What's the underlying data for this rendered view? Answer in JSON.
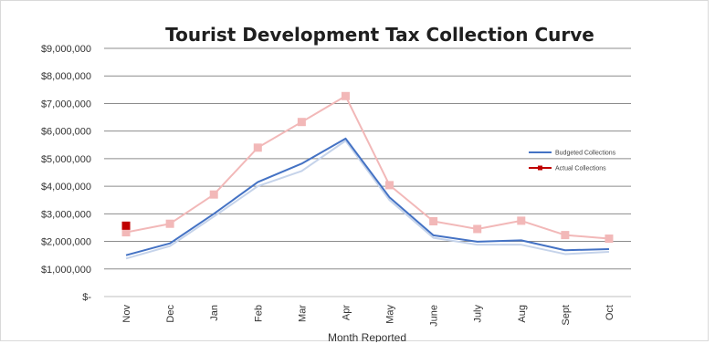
{
  "chart_data": {
    "type": "line",
    "title": "Tourist  Development Tax Collection Curve",
    "xlabel": "Month Reported",
    "ylabel": "",
    "categories": [
      "Nov",
      "Dec",
      "Jan",
      "Feb",
      "Mar",
      "Apr",
      "May",
      "June",
      "July",
      "Aug",
      "Sept",
      "Oct"
    ],
    "y_ticks": [
      "$-",
      "$1,000,000",
      "$2,000,000",
      "$3,000,000",
      "$4,000,000",
      "$5,000,000",
      "$6,000,000",
      "$7,000,000",
      "$8,000,000",
      "$9,000,000"
    ],
    "ylim": [
      0,
      9000000
    ],
    "grid": true,
    "legend_position": "right",
    "series": [
      {
        "name": "Budgeted Collections",
        "color": "#4472c4",
        "marker": "none",
        "values": [
          1500000,
          1930000,
          3000000,
          4150000,
          4820000,
          5730000,
          3600000,
          2220000,
          1990000,
          2040000,
          1680000,
          1720000
        ]
      },
      {
        "name": "Actual Collections",
        "color": "#c00000",
        "marker": "square",
        "values": [
          2570000,
          null,
          null,
          null,
          null,
          null,
          null,
          null,
          null,
          null,
          null,
          null
        ]
      }
    ],
    "background_series": [
      {
        "color": "#f2b8b8",
        "marker": "square",
        "values": [
          2330000,
          2640000,
          3700000,
          5400000,
          6330000,
          7270000,
          4040000,
          2730000,
          2450000,
          2750000,
          2230000,
          2100000
        ]
      },
      {
        "color": "#c5d3ea",
        "marker": "none",
        "values": [
          1380000,
          1830000,
          2900000,
          4000000,
          4550000,
          5650000,
          3500000,
          2130000,
          1880000,
          1880000,
          1540000,
          1620000
        ]
      }
    ]
  }
}
